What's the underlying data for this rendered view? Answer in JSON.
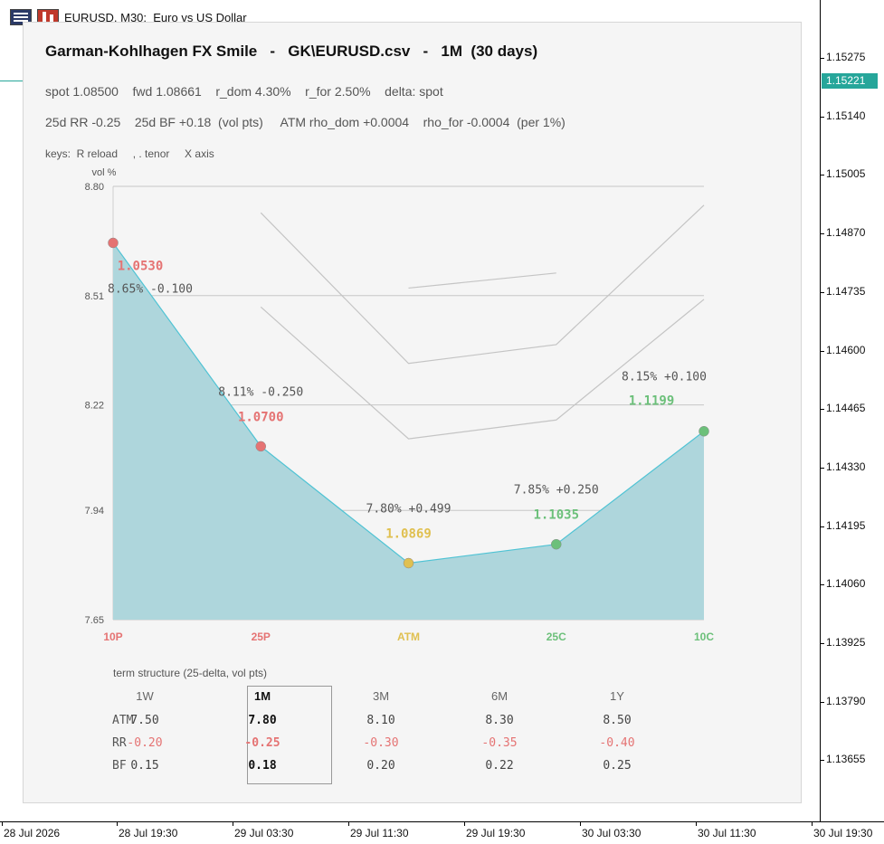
{
  "window": {
    "title": "EURUSD, M30:  Euro vs US Dollar",
    "price_badge": "1.15221",
    "price_axis": [
      "1.15275",
      "1.15140",
      "1.15005",
      "1.14870",
      "1.14735",
      "1.14600",
      "1.14465",
      "1.14330",
      "1.14195",
      "1.14060",
      "1.13925",
      "1.13790",
      "1.13655"
    ],
    "time_axis": [
      "28 Jul 2026",
      "28 Jul 19:30",
      "29 Jul 03:30",
      "29 Jul 11:30",
      "29 Jul 19:30",
      "30 Jul 03:30",
      "30 Jul 11:30",
      "30 Jul 19:30"
    ]
  },
  "panel": {
    "title": "Garman-Kohlhagen FX Smile   -   GK\\EURUSD.csv   -   1M  (30 days)",
    "line1": "spot 1.08500    fwd 1.08661    r_dom 4.30%    r_for 2.50%    delta: spot",
    "line2": "25d RR -0.25    25d BF +0.18  (vol pts)     ATM rho_dom +0.0004    rho_for -0.0004  (per 1%)",
    "keys": "keys:  R reload     , . tenor     X axis"
  },
  "chart_data": {
    "type": "area",
    "ylabel": "vol %",
    "ylim": [
      7.65,
      8.8
    ],
    "yticks": [
      "8.80",
      "8.51",
      "8.22",
      "7.94",
      "7.65"
    ],
    "categories": [
      "10P",
      "25P",
      "ATM",
      "25C",
      "10C"
    ],
    "category_colors": [
      "#e57373",
      "#e57373",
      "#e0c050",
      "#6cc07a",
      "#6cc07a"
    ],
    "series": [
      {
        "values": [
          8.65,
          8.11,
          7.8,
          7.85,
          8.15
        ],
        "color": "#4fc3d4",
        "fill": "#aed6dc"
      }
    ],
    "strikes": [
      "1.0530",
      "1.0700",
      "1.0869",
      "1.1035",
      "1.1199"
    ],
    "point_labels": [
      "8.65%  -0.100",
      "8.11%  -0.250",
      "7.80%  +0.499",
      "7.85%  +0.250",
      "8.15%  +0.100"
    ],
    "other_tenor_curves": [
      {
        "x": [
          2,
          3
        ],
        "values": [
          8.53,
          8.57
        ]
      },
      {
        "x": [
          1,
          2,
          3,
          4
        ],
        "values": [
          8.73,
          8.33,
          8.38,
          8.75
        ]
      },
      {
        "x": [
          1,
          2,
          3,
          4
        ],
        "values": [
          8.48,
          8.13,
          8.18,
          8.5
        ]
      }
    ],
    "grid_y": true
  },
  "term_structure": {
    "title": "term structure (25-delta, vol pts)",
    "tenors": [
      "1W",
      "1M",
      "3M",
      "6M",
      "1Y"
    ],
    "active_index": 1,
    "rows": [
      {
        "label": "ATM",
        "values": [
          "7.50",
          "7.80",
          "8.10",
          "8.30",
          "8.50"
        ]
      },
      {
        "label": "RR",
        "values": [
          "-0.20",
          "-0.25",
          "-0.30",
          "-0.35",
          "-0.40"
        ]
      },
      {
        "label": "BF",
        "values": [
          "0.15",
          "0.18",
          "0.20",
          "0.22",
          "0.25"
        ]
      }
    ],
    "rr_color": "#e57373"
  }
}
